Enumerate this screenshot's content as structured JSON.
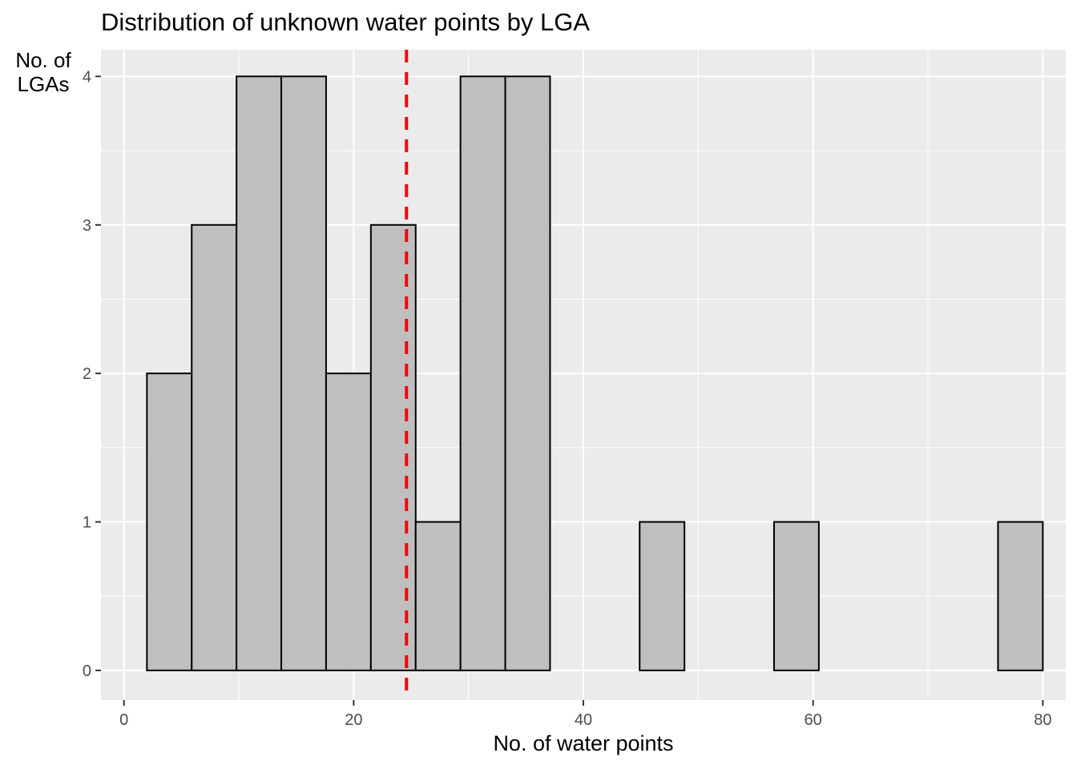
{
  "chart_data": {
    "type": "bar",
    "subtype": "histogram",
    "title": "Distribution of unknown water points by LGA",
    "xlabel": "No. of water points",
    "ylabel": "No. of LGAs",
    "xlim": [
      -2,
      82
    ],
    "ylim": [
      -0.2,
      4.18
    ],
    "x_ticks": [
      0,
      20,
      40,
      60,
      80
    ],
    "y_ticks": [
      0,
      1,
      2,
      3,
      4
    ],
    "x_tick_labels": [
      "0",
      "20",
      "40",
      "60",
      "80"
    ],
    "y_tick_labels": [
      "0",
      "1",
      "2",
      "3",
      "4"
    ],
    "bin_width": 3.9,
    "bins": [
      {
        "x0": 2.0,
        "x1": 5.9,
        "count": 2
      },
      {
        "x0": 5.9,
        "x1": 9.8,
        "count": 3
      },
      {
        "x0": 9.8,
        "x1": 13.7,
        "count": 4
      },
      {
        "x0": 13.7,
        "x1": 17.6,
        "count": 4
      },
      {
        "x0": 17.6,
        "x1": 21.5,
        "count": 2
      },
      {
        "x0": 21.5,
        "x1": 25.4,
        "count": 3
      },
      {
        "x0": 25.4,
        "x1": 29.3,
        "count": 1
      },
      {
        "x0": 29.3,
        "x1": 33.2,
        "count": 4
      },
      {
        "x0": 33.2,
        "x1": 37.1,
        "count": 4
      },
      {
        "x0": 37.1,
        "x1": 41.0,
        "count": 0
      },
      {
        "x0": 41.0,
        "x1": 44.9,
        "count": 0
      },
      {
        "x0": 44.9,
        "x1": 48.8,
        "count": 1
      },
      {
        "x0": 48.8,
        "x1": 52.7,
        "count": 0
      },
      {
        "x0": 52.7,
        "x1": 56.6,
        "count": 0
      },
      {
        "x0": 56.6,
        "x1": 60.5,
        "count": 1
      },
      {
        "x0": 60.5,
        "x1": 64.4,
        "count": 0
      },
      {
        "x0": 64.4,
        "x1": 68.3,
        "count": 0
      },
      {
        "x0": 68.3,
        "x1": 72.2,
        "count": 0
      },
      {
        "x0": 72.2,
        "x1": 76.1,
        "count": 0
      },
      {
        "x0": 76.1,
        "x1": 80.0,
        "count": 1
      }
    ],
    "reference_line": {
      "x": 24.6,
      "style": "dashed",
      "color": "#ff0000"
    },
    "grid": true,
    "colors": {
      "panel": "#ebebeb",
      "grid": "#ffffff",
      "bar_fill": "#bfbfbf",
      "bar_stroke": "#000000",
      "tick_text": "#4d4d4d"
    }
  }
}
